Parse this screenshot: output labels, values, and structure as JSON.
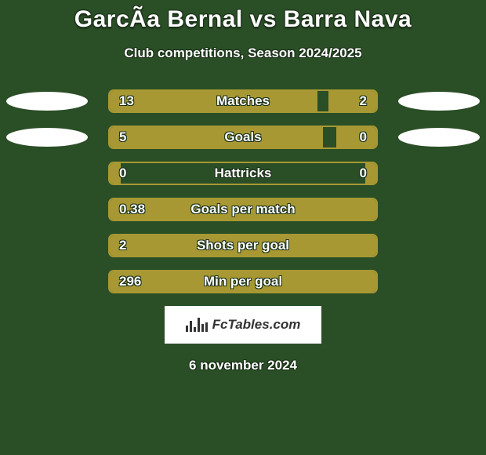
{
  "title": "GarcÃ­a Bernal vs Barra Nava",
  "subtitle": "Club competitions, Season 2024/2025",
  "date": "6 november 2024",
  "logo_text": "FcTables.com",
  "background_color": "#2a4e26",
  "bar_color": "#a79833",
  "text_color": "#ffffff",
  "ellipse_color": "#ffffff",
  "stats": [
    {
      "label": "Matches",
      "left_value": "13",
      "right_value": "2",
      "left_pct": 78,
      "right_pct": 18,
      "show_ellipses": true
    },
    {
      "label": "Goals",
      "left_value": "5",
      "right_value": "0",
      "left_pct": 80,
      "right_pct": 15,
      "show_ellipses": true
    },
    {
      "label": "Hattricks",
      "left_value": "0",
      "right_value": "0",
      "left_pct": 4,
      "right_pct": 4,
      "show_ellipses": false
    },
    {
      "label": "Goals per match",
      "left_value": "0.38",
      "right_value": "",
      "left_pct": 100,
      "right_pct": 0,
      "show_ellipses": false
    },
    {
      "label": "Shots per goal",
      "left_value": "2",
      "right_value": "",
      "left_pct": 100,
      "right_pct": 0,
      "show_ellipses": false
    },
    {
      "label": "Min per goal",
      "left_value": "296",
      "right_value": "",
      "left_pct": 100,
      "right_pct": 0,
      "show_ellipses": false
    }
  ],
  "logo_bars_heights": [
    8,
    14,
    6,
    18,
    10,
    12
  ]
}
